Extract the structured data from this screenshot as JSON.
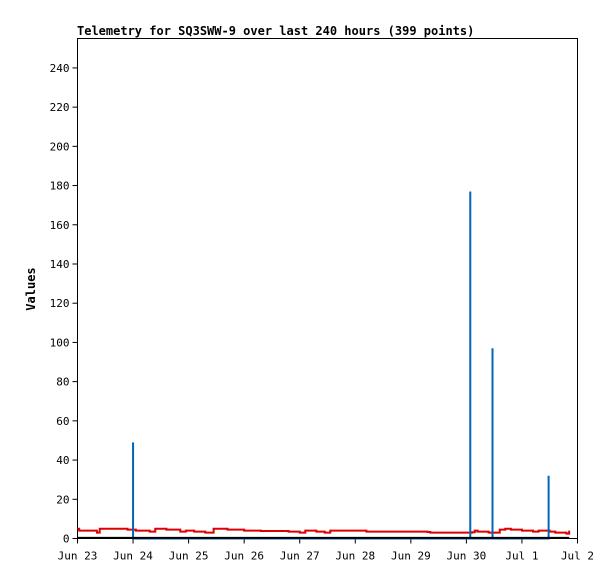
{
  "chart_data": {
    "type": "line",
    "title": "Telemetry for SQ3SWW-9 over last 240 hours (399 points)",
    "xlabel": "",
    "ylabel": "Values",
    "x_tick_labels": [
      "Jun 23",
      "Jun 24",
      "Jun 25",
      "Jun 26",
      "Jun 27",
      "Jun 28",
      "Jun 29",
      "Jun 30",
      "Jul 1",
      "Jul 2"
    ],
    "y_ticks": [
      0,
      20,
      40,
      60,
      80,
      100,
      120,
      140,
      160,
      180,
      200,
      220,
      240
    ],
    "xlim": [
      0,
      9
    ],
    "ylim": [
      0,
      255
    ],
    "grid": false,
    "legend": "none",
    "series": [
      {
        "color": "#dd0000",
        "style": "step",
        "points": [
          [
            0.0,
            5
          ],
          [
            0.03,
            4
          ],
          [
            0.35,
            3
          ],
          [
            0.4,
            5
          ],
          [
            0.9,
            4.5
          ],
          [
            1.05,
            4
          ],
          [
            1.3,
            3.5
          ],
          [
            1.4,
            5
          ],
          [
            1.6,
            4.5
          ],
          [
            1.85,
            3.5
          ],
          [
            1.95,
            4
          ],
          [
            2.1,
            3.5
          ],
          [
            2.3,
            3
          ],
          [
            2.45,
            5
          ],
          [
            2.7,
            4.5
          ],
          [
            3.0,
            4
          ],
          [
            3.3,
            3.8
          ],
          [
            3.8,
            3.5
          ],
          [
            4.0,
            3
          ],
          [
            4.1,
            4
          ],
          [
            4.3,
            3.5
          ],
          [
            4.45,
            3
          ],
          [
            4.55,
            4
          ],
          [
            5.2,
            3.5
          ],
          [
            6.3,
            3.3
          ],
          [
            6.35,
            3
          ],
          [
            7.1,
            3.2
          ],
          [
            7.15,
            4
          ],
          [
            7.2,
            3.5
          ],
          [
            7.4,
            3
          ],
          [
            7.6,
            4.5
          ],
          [
            7.7,
            5
          ],
          [
            7.8,
            4.5
          ],
          [
            8.0,
            4
          ],
          [
            8.2,
            3.5
          ],
          [
            8.3,
            4
          ],
          [
            8.5,
            3.5
          ],
          [
            8.6,
            3
          ],
          [
            8.8,
            2.5
          ],
          [
            8.85,
            4
          ]
        ]
      },
      {
        "color": "#0066bb",
        "style": "spike",
        "points": [
          [
            1.0,
            0
          ],
          [
            1.0,
            49
          ],
          [
            1.0,
            0
          ],
          [
            7.07,
            0
          ],
          [
            7.07,
            177
          ],
          [
            7.07,
            0
          ],
          [
            7.47,
            0
          ],
          [
            7.47,
            97
          ],
          [
            7.47,
            0
          ],
          [
            8.48,
            0
          ],
          [
            8.48,
            32
          ],
          [
            8.48,
            0
          ]
        ]
      },
      {
        "color": "#000000",
        "style": "flat",
        "points": [
          [
            0.0,
            0.3
          ],
          [
            8.85,
            0.3
          ]
        ]
      }
    ]
  }
}
